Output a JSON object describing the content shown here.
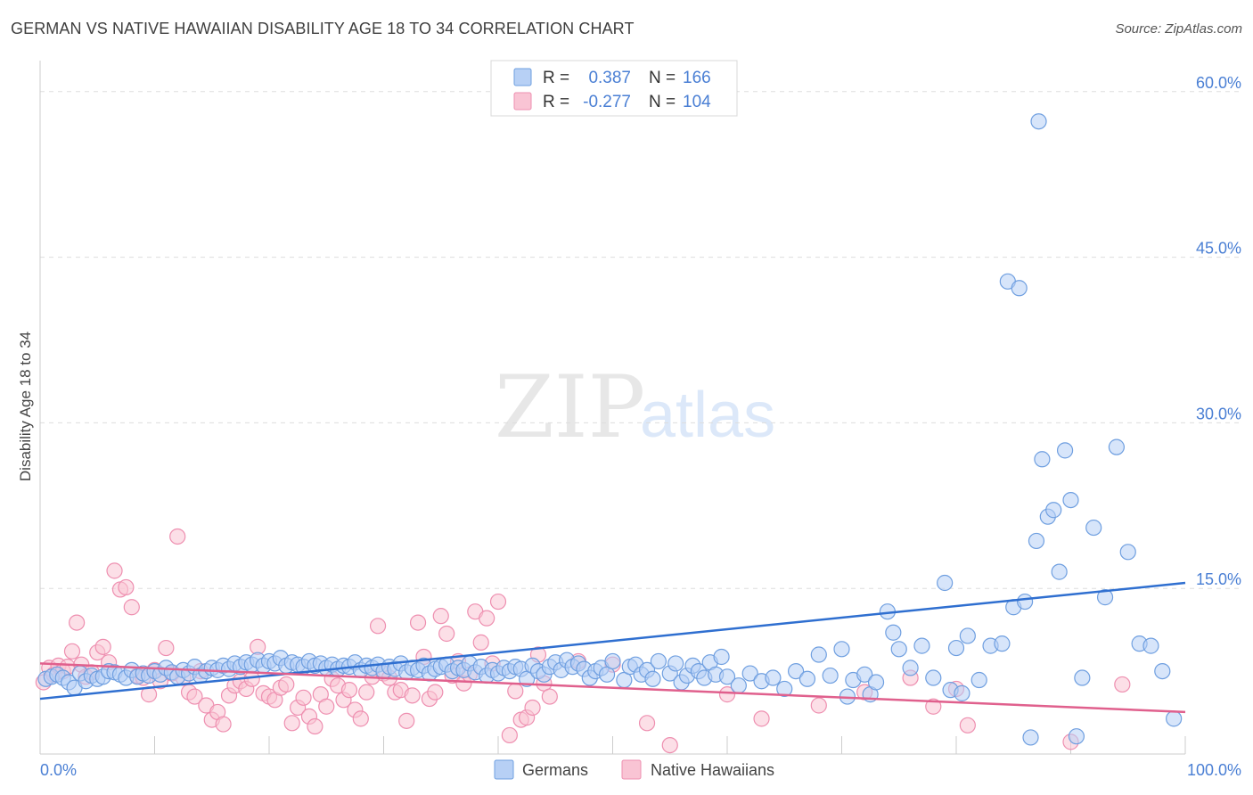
{
  "header": {
    "title": "GERMAN VS NATIVE HAWAIIAN DISABILITY AGE 18 TO 34 CORRELATION CHART",
    "source": "Source: ZipAtlas.com"
  },
  "watermark": {
    "zip": "ZIP",
    "atlas": "atlas"
  },
  "legend": {
    "r_label": "R =",
    "n_label": "N =",
    "entries": [
      {
        "r": "0.387",
        "n": "166",
        "color": "#4a7fd4",
        "fill": "#b7d0f5",
        "stroke": "#6f9fe0"
      },
      {
        "r": "-0.277",
        "n": "104",
        "color": "#4a7fd4",
        "fill": "#f9c4d4",
        "stroke": "#ee8fb0"
      }
    ]
  },
  "bottom_legend": [
    {
      "label": "Germans"
    },
    {
      "label": "Native Hawaiians"
    }
  ],
  "chart_data": {
    "type": "scatter",
    "title": "GERMAN VS NATIVE HAWAIIAN DISABILITY AGE 18 TO 34 CORRELATION CHART",
    "xlabel": "",
    "ylabel": "Disability Age 18 to 34",
    "xlim": [
      0,
      100
    ],
    "ylim": [
      0,
      62
    ],
    "x_tick_labels": [
      "0.0%",
      "100.0%"
    ],
    "y_ticks": [
      15,
      30,
      45,
      60
    ],
    "y_tick_labels": [
      "15.0%",
      "30.0%",
      "45.0%",
      "60.0%"
    ],
    "grid": true,
    "legend_position": "top-center",
    "series": [
      {
        "name": "Germans",
        "color": "#4a7fd4",
        "fill": "#b7d0f5",
        "trend": {
          "x": [
            0,
            100
          ],
          "y": [
            5.0,
            15.5
          ]
        },
        "points": [
          [
            0.5,
            6.8
          ],
          [
            1.0,
            7.0
          ],
          [
            1.5,
            7.2
          ],
          [
            2.0,
            6.9
          ],
          [
            2.5,
            6.5
          ],
          [
            3.0,
            6.0
          ],
          [
            3.5,
            7.3
          ],
          [
            4.0,
            6.6
          ],
          [
            4.5,
            7.1
          ],
          [
            5.0,
            6.8
          ],
          [
            5.5,
            7.0
          ],
          [
            6.0,
            7.5
          ],
          [
            6.5,
            7.4
          ],
          [
            7.0,
            7.2
          ],
          [
            7.5,
            6.9
          ],
          [
            8.0,
            7.6
          ],
          [
            8.5,
            7.0
          ],
          [
            9.0,
            7.3
          ],
          [
            9.5,
            7.1
          ],
          [
            10.0,
            7.5
          ],
          [
            10.5,
            7.2
          ],
          [
            11.0,
            7.8
          ],
          [
            11.5,
            7.4
          ],
          [
            12.0,
            7.0
          ],
          [
            12.5,
            7.6
          ],
          [
            13.0,
            7.3
          ],
          [
            13.5,
            7.9
          ],
          [
            14.0,
            7.1
          ],
          [
            14.5,
            7.5
          ],
          [
            15.0,
            7.8
          ],
          [
            15.5,
            7.6
          ],
          [
            16.0,
            8.0
          ],
          [
            16.5,
            7.7
          ],
          [
            17.0,
            8.2
          ],
          [
            17.5,
            7.9
          ],
          [
            18.0,
            8.3
          ],
          [
            18.5,
            8.1
          ],
          [
            19.0,
            8.5
          ],
          [
            19.5,
            8.0
          ],
          [
            20.0,
            8.4
          ],
          [
            20.5,
            8.2
          ],
          [
            21.0,
            8.7
          ],
          [
            21.5,
            8.0
          ],
          [
            22.0,
            8.3
          ],
          [
            22.5,
            8.1
          ],
          [
            23.0,
            7.9
          ],
          [
            23.5,
            8.4
          ],
          [
            24.0,
            8.0
          ],
          [
            24.5,
            8.2
          ],
          [
            25.0,
            7.8
          ],
          [
            25.5,
            8.1
          ],
          [
            26.0,
            7.7
          ],
          [
            26.5,
            8.0
          ],
          [
            27.0,
            7.9
          ],
          [
            27.5,
            8.3
          ],
          [
            28.0,
            7.6
          ],
          [
            28.5,
            8.0
          ],
          [
            29.0,
            7.8
          ],
          [
            29.5,
            8.1
          ],
          [
            30.0,
            7.5
          ],
          [
            30.5,
            7.9
          ],
          [
            31.0,
            7.7
          ],
          [
            31.5,
            8.2
          ],
          [
            32.0,
            7.4
          ],
          [
            32.5,
            7.8
          ],
          [
            33.0,
            7.6
          ],
          [
            33.5,
            8.0
          ],
          [
            34.0,
            7.3
          ],
          [
            34.5,
            7.7
          ],
          [
            35.0,
            7.9
          ],
          [
            35.5,
            8.1
          ],
          [
            36.0,
            7.5
          ],
          [
            36.5,
            7.8
          ],
          [
            37.0,
            7.6
          ],
          [
            37.5,
            8.2
          ],
          [
            38.0,
            7.4
          ],
          [
            38.5,
            7.9
          ],
          [
            39.0,
            7.1
          ],
          [
            39.5,
            7.6
          ],
          [
            40.0,
            7.3
          ],
          [
            40.5,
            7.8
          ],
          [
            41.0,
            7.5
          ],
          [
            41.5,
            7.9
          ],
          [
            42.0,
            7.7
          ],
          [
            42.5,
            6.8
          ],
          [
            43.0,
            8.0
          ],
          [
            43.5,
            7.5
          ],
          [
            44.0,
            7.2
          ],
          [
            44.5,
            7.9
          ],
          [
            45.0,
            8.3
          ],
          [
            45.5,
            7.6
          ],
          [
            46.0,
            8.5
          ],
          [
            46.5,
            7.9
          ],
          [
            47.0,
            8.2
          ],
          [
            47.5,
            7.7
          ],
          [
            48.0,
            6.9
          ],
          [
            48.5,
            7.5
          ],
          [
            49.0,
            7.8
          ],
          [
            49.5,
            7.2
          ],
          [
            50.0,
            8.4
          ],
          [
            51.0,
            6.7
          ],
          [
            51.5,
            7.9
          ],
          [
            52.0,
            8.1
          ],
          [
            52.5,
            7.2
          ],
          [
            53.0,
            7.6
          ],
          [
            53.5,
            6.8
          ],
          [
            54.0,
            8.4
          ],
          [
            55.0,
            7.3
          ],
          [
            55.5,
            8.2
          ],
          [
            56.0,
            6.5
          ],
          [
            56.5,
            7.1
          ],
          [
            57.0,
            8.0
          ],
          [
            57.5,
            7.5
          ],
          [
            58.0,
            6.9
          ],
          [
            58.5,
            8.3
          ],
          [
            59.0,
            7.2
          ],
          [
            59.5,
            8.8
          ],
          [
            60.0,
            7.0
          ],
          [
            61.0,
            6.2
          ],
          [
            62.0,
            7.3
          ],
          [
            63.0,
            6.6
          ],
          [
            64.0,
            6.9
          ],
          [
            65.0,
            5.9
          ],
          [
            66.0,
            7.5
          ],
          [
            67.0,
            6.8
          ],
          [
            68.0,
            9.0
          ],
          [
            69.0,
            7.1
          ],
          [
            70.0,
            9.5
          ],
          [
            70.5,
            5.2
          ],
          [
            71.0,
            6.7
          ],
          [
            72.0,
            7.2
          ],
          [
            72.5,
            5.4
          ],
          [
            73.0,
            6.5
          ],
          [
            74.0,
            12.9
          ],
          [
            74.5,
            11.0
          ],
          [
            75.0,
            9.5
          ],
          [
            76.0,
            7.8
          ],
          [
            77.0,
            9.8
          ],
          [
            78.0,
            6.9
          ],
          [
            79.0,
            15.5
          ],
          [
            79.5,
            5.8
          ],
          [
            80.0,
            9.6
          ],
          [
            80.5,
            5.5
          ],
          [
            81.0,
            10.7
          ],
          [
            82.0,
            6.7
          ],
          [
            83.0,
            9.8
          ],
          [
            84.0,
            10.0
          ],
          [
            85.0,
            13.3
          ],
          [
            86.0,
            13.8
          ],
          [
            87.0,
            19.3
          ],
          [
            88.0,
            21.5
          ],
          [
            89.0,
            16.5
          ],
          [
            90.0,
            23.0
          ],
          [
            91.0,
            6.9
          ],
          [
            92.0,
            20.5
          ],
          [
            93.0,
            14.2
          ],
          [
            94.0,
            27.8
          ],
          [
            95.0,
            18.3
          ],
          [
            96.0,
            10.0
          ],
          [
            97.0,
            9.8
          ],
          [
            98.0,
            7.5
          ],
          [
            99.0,
            3.2
          ],
          [
            86.5,
            1.5
          ],
          [
            87.5,
            26.7
          ],
          [
            88.5,
            22.1
          ],
          [
            90.5,
            1.6
          ],
          [
            84.5,
            42.8
          ],
          [
            85.5,
            42.2
          ],
          [
            87.2,
            57.3
          ],
          [
            89.5,
            27.5
          ]
        ]
      },
      {
        "name": "Native Hawaiians",
        "color": "#e0608d",
        "fill": "#f9c4d4",
        "trend": {
          "x": [
            0,
            100
          ],
          "y": [
            8.2,
            3.8
          ]
        },
        "points": [
          [
            0.3,
            6.5
          ],
          [
            0.8,
            7.8
          ],
          [
            1.2,
            7.2
          ],
          [
            1.6,
            8.0
          ],
          [
            2.0,
            7.5
          ],
          [
            2.4,
            7.9
          ],
          [
            2.8,
            9.3
          ],
          [
            3.2,
            11.9
          ],
          [
            3.6,
            8.1
          ],
          [
            4.0,
            7.0
          ],
          [
            4.5,
            7.4
          ],
          [
            5.0,
            9.2
          ],
          [
            5.5,
            9.7
          ],
          [
            6.0,
            8.3
          ],
          [
            6.5,
            16.6
          ],
          [
            7.0,
            14.9
          ],
          [
            7.5,
            15.1
          ],
          [
            8.0,
            13.3
          ],
          [
            8.5,
            7.1
          ],
          [
            9.0,
            6.9
          ],
          [
            9.5,
            5.4
          ],
          [
            10.0,
            7.6
          ],
          [
            10.5,
            6.6
          ],
          [
            11.0,
            9.6
          ],
          [
            11.5,
            7.3
          ],
          [
            12.0,
            19.7
          ],
          [
            12.5,
            6.9
          ],
          [
            13.0,
            5.6
          ],
          [
            13.5,
            5.2
          ],
          [
            14.0,
            7.5
          ],
          [
            14.5,
            4.4
          ],
          [
            15.0,
            3.1
          ],
          [
            15.5,
            3.8
          ],
          [
            16.0,
            2.7
          ],
          [
            16.5,
            5.3
          ],
          [
            17.0,
            6.2
          ],
          [
            17.5,
            6.6
          ],
          [
            18.0,
            5.9
          ],
          [
            18.5,
            6.8
          ],
          [
            19.0,
            9.7
          ],
          [
            19.5,
            5.5
          ],
          [
            20.0,
            5.2
          ],
          [
            20.5,
            4.9
          ],
          [
            21.0,
            6.0
          ],
          [
            21.5,
            6.3
          ],
          [
            22.0,
            2.8
          ],
          [
            22.5,
            4.2
          ],
          [
            23.0,
            5.1
          ],
          [
            23.5,
            3.4
          ],
          [
            24.0,
            2.5
          ],
          [
            24.5,
            5.4
          ],
          [
            25.0,
            4.3
          ],
          [
            25.5,
            6.8
          ],
          [
            26.0,
            6.2
          ],
          [
            26.5,
            4.9
          ],
          [
            27.0,
            5.8
          ],
          [
            27.5,
            4.0
          ],
          [
            28.0,
            3.2
          ],
          [
            28.5,
            5.6
          ],
          [
            29.0,
            7.0
          ],
          [
            29.5,
            11.6
          ],
          [
            30.0,
            7.3
          ],
          [
            30.5,
            6.9
          ],
          [
            31.0,
            5.6
          ],
          [
            31.5,
            5.8
          ],
          [
            32.0,
            3.0
          ],
          [
            32.5,
            5.3
          ],
          [
            33.0,
            11.9
          ],
          [
            33.5,
            8.8
          ],
          [
            34.0,
            5.0
          ],
          [
            34.5,
            5.6
          ],
          [
            35.0,
            12.5
          ],
          [
            35.5,
            10.9
          ],
          [
            36.0,
            7.1
          ],
          [
            36.5,
            8.4
          ],
          [
            37.0,
            6.4
          ],
          [
            37.5,
            7.2
          ],
          [
            38.0,
            12.9
          ],
          [
            38.5,
            10.1
          ],
          [
            39.0,
            12.3
          ],
          [
            39.5,
            8.2
          ],
          [
            40.0,
            13.8
          ],
          [
            41.0,
            1.7
          ],
          [
            41.5,
            5.7
          ],
          [
            42.0,
            3.1
          ],
          [
            42.5,
            3.3
          ],
          [
            43.0,
            4.2
          ],
          [
            43.5,
            9.0
          ],
          [
            44.0,
            6.4
          ],
          [
            44.5,
            5.2
          ],
          [
            47.0,
            8.4
          ],
          [
            50.0,
            8.1
          ],
          [
            53.0,
            2.8
          ],
          [
            55.0,
            0.8
          ],
          [
            60.0,
            5.4
          ],
          [
            63.0,
            3.2
          ],
          [
            68.0,
            4.4
          ],
          [
            72.0,
            5.6
          ],
          [
            76.0,
            6.9
          ],
          [
            78.0,
            4.3
          ],
          [
            80.0,
            5.9
          ],
          [
            81.0,
            2.6
          ],
          [
            90.0,
            1.1
          ],
          [
            94.5,
            6.3
          ]
        ]
      }
    ]
  }
}
